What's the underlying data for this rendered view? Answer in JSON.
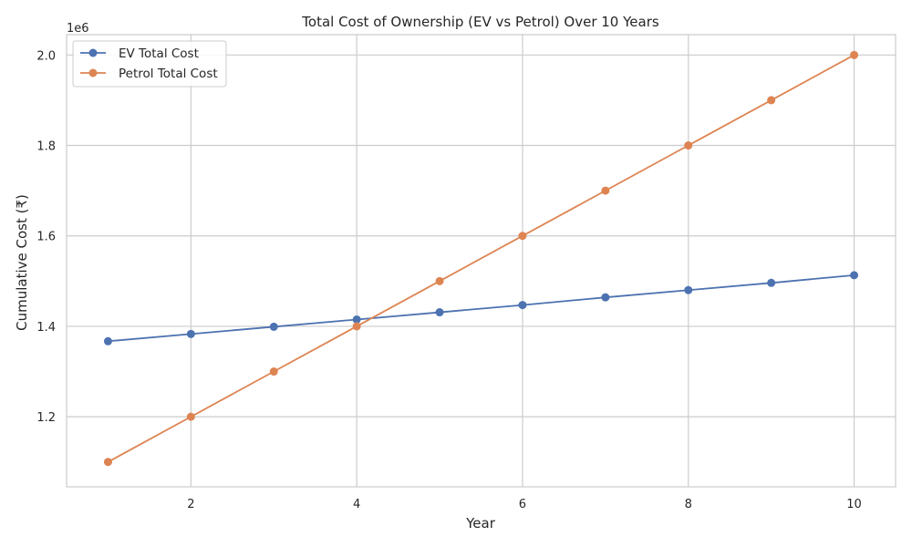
{
  "chart_data": {
    "type": "line",
    "title": "Total Cost of Ownership (EV vs Petrol) Over 10 Years",
    "xlabel": "Year",
    "ylabel": "Cumulative Cost (₹)",
    "y_offset_label": "1e6",
    "x": [
      1,
      2,
      3,
      4,
      5,
      6,
      7,
      8,
      9,
      10
    ],
    "xlim": [
      0.5,
      10.5
    ],
    "ylim": [
      1.045,
      2.045
    ],
    "x_ticks": [
      2,
      4,
      6,
      8,
      10
    ],
    "x_tick_labels": [
      "2",
      "4",
      "6",
      "8",
      "10"
    ],
    "y_ticks": [
      1.2,
      1.4,
      1.6,
      1.8,
      2.0
    ],
    "y_tick_labels": [
      "1.2",
      "1.4",
      "1.6",
      "1.8",
      "2.0"
    ],
    "grid": true,
    "legend_position": "top-left",
    "series": [
      {
        "name": "EV Total Cost",
        "color": "#4c72b0",
        "values": [
          1.367,
          1.383,
          1.399,
          1.415,
          1.431,
          1.447,
          1.464,
          1.48,
          1.496,
          1.513
        ]
      },
      {
        "name": "Petrol Total Cost",
        "color": "#dd8452",
        "values": [
          1.1,
          1.2,
          1.3,
          1.4,
          1.5,
          1.6,
          1.7,
          1.8,
          1.9,
          2.0
        ]
      }
    ]
  }
}
